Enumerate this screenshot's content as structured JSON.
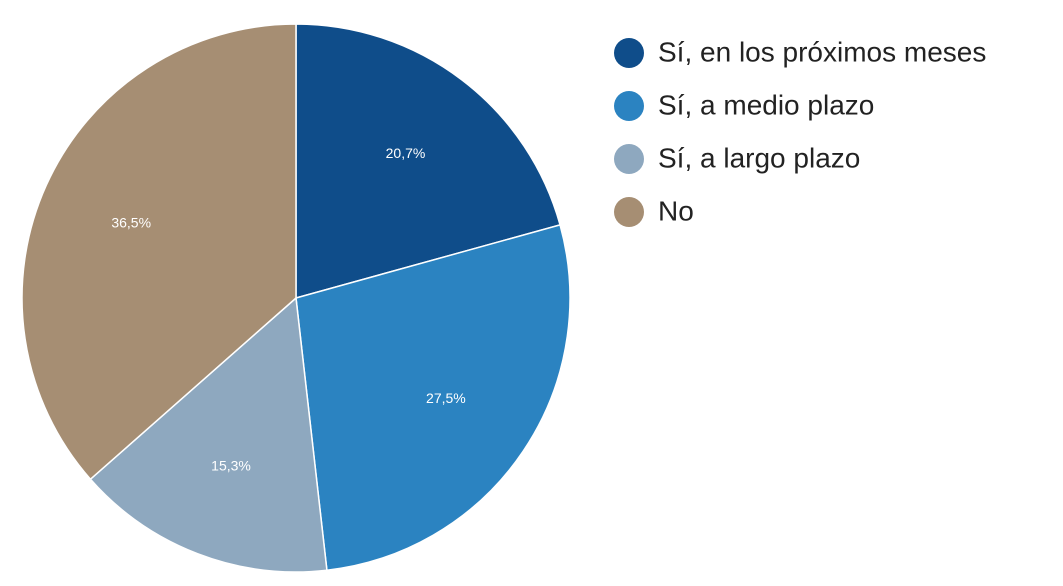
{
  "chart_data": {
    "type": "pie",
    "title": "",
    "categories": [
      "Sí, en los próximos meses",
      "Sí, a medio plazo",
      "Sí, a largo plazo",
      "No"
    ],
    "values": [
      20.7,
      27.5,
      15.3,
      36.5
    ],
    "labels": [
      "20,7%",
      "27,5%",
      "15,3%",
      "36,5%"
    ],
    "colors": [
      "#0f4d8a",
      "#2b83c1",
      "#8ea8bf",
      "#a68e73"
    ],
    "unit": "%",
    "start_angle": "12 o'clock",
    "direction": "clockwise",
    "legend_position": "right"
  }
}
